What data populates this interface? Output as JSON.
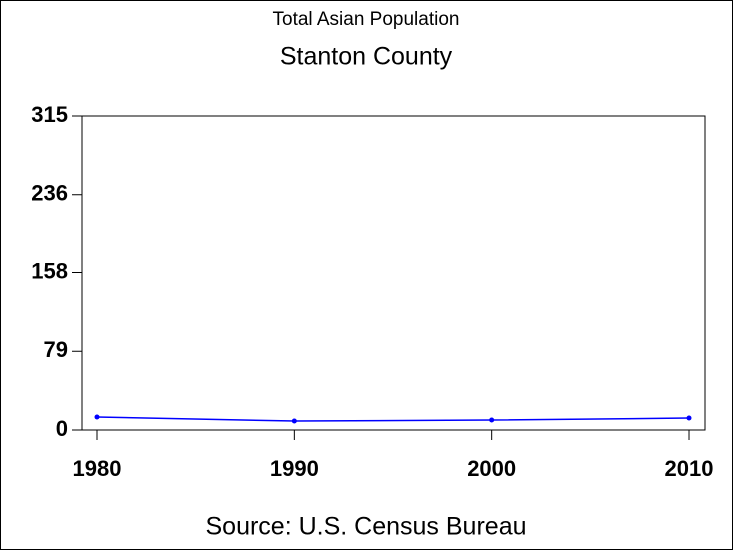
{
  "chart_data": {
    "type": "line",
    "title": "Total Asian Population",
    "subtitle": "Stanton County",
    "caption": "Source: U.S. Census Bureau",
    "x": [
      1980,
      1990,
      2000,
      2010
    ],
    "series": [
      {
        "name": "Total Asian Population",
        "color": "#0000ff",
        "values": [
          13,
          9,
          10,
          12
        ]
      }
    ],
    "xlim": [
      1979.24,
      2010.81
    ],
    "xticks": [
      1980,
      1990,
      2000,
      2010
    ],
    "ylim": [
      0,
      315
    ],
    "yticks": [
      0,
      79,
      158,
      236,
      315
    ]
  }
}
